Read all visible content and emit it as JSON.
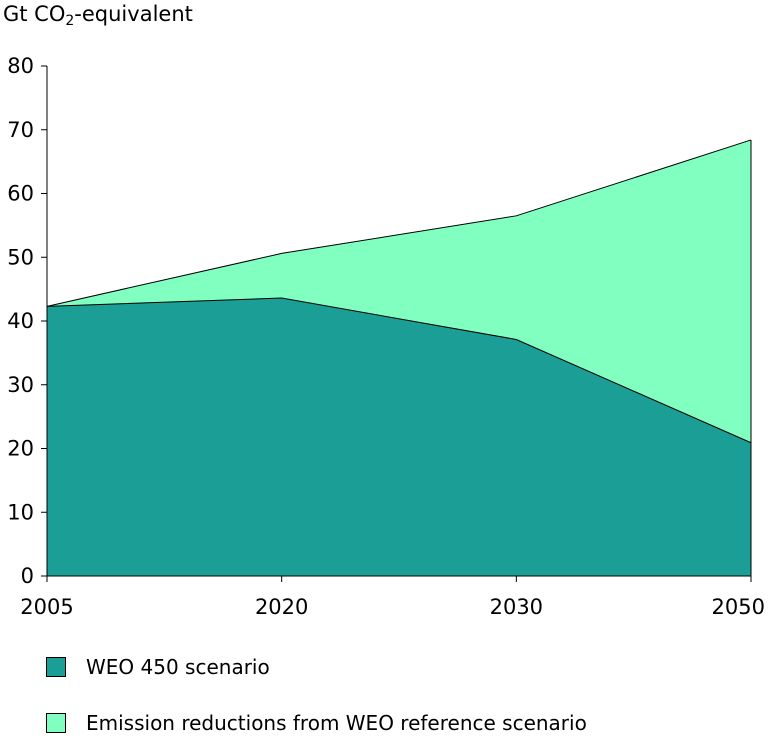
{
  "chart_data": {
    "type": "area",
    "stacked": true,
    "ylabel_prefix": "Gt CO",
    "ylabel_sub": "2",
    "ylabel_suffix": "-equivalent",
    "x": [
      "2005",
      "2020",
      "2030",
      "2050"
    ],
    "ylim": [
      0,
      80
    ],
    "yticks": [
      0,
      10,
      20,
      30,
      40,
      50,
      60,
      70,
      80
    ],
    "grid": false,
    "legend_position": "bottom",
    "series": [
      {
        "name": "WEO 450 scenario",
        "values": [
          42.3,
          43.6,
          37.1,
          20.9
        ],
        "color": "#1a9e96"
      },
      {
        "name": "Emission reductions from WEO reference scenario",
        "values": [
          0.0,
          7.0,
          19.4,
          47.5
        ],
        "color": "#80ffc0"
      }
    ]
  }
}
